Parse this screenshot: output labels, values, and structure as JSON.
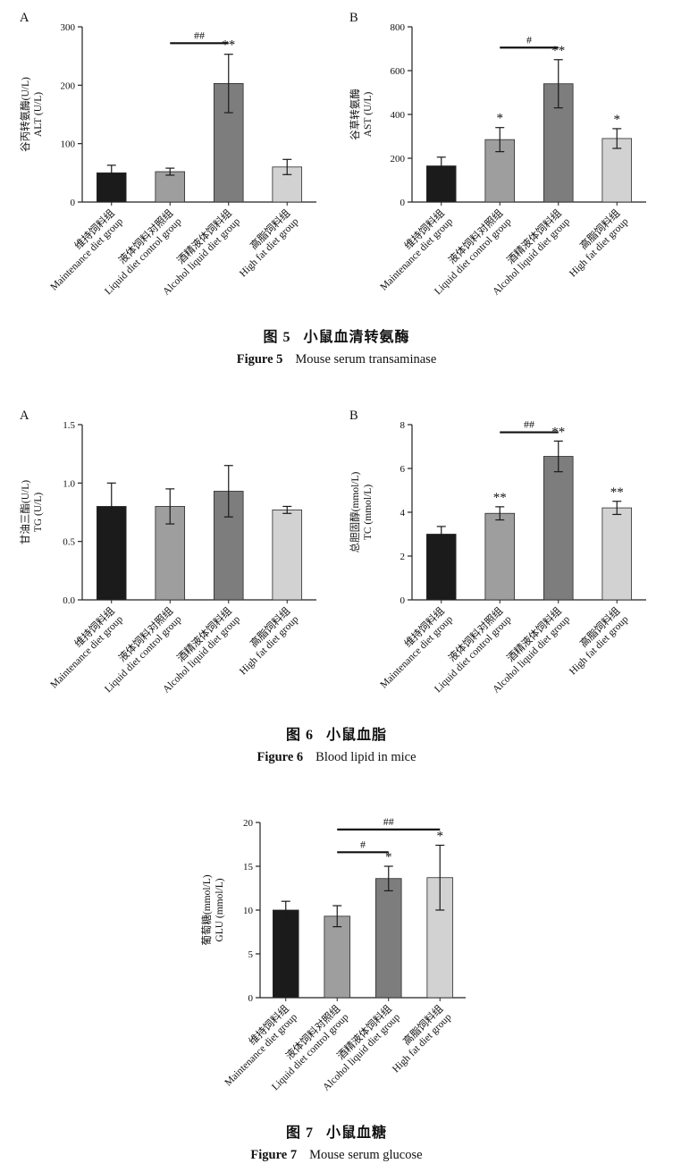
{
  "page": {
    "background": "#ffffff",
    "text_color": "#111111"
  },
  "figures": [
    {
      "caption_zh_bold": "图 5",
      "caption_zh_rest": "小鼠血清转氨酶",
      "caption_en_bold": "Figure 5",
      "caption_en_rest": "Mouse serum transaminase"
    },
    {
      "caption_zh_bold": "图 6",
      "caption_zh_rest": "小鼠血脂",
      "caption_en_bold": "Figure 6",
      "caption_en_rest": "Blood lipid in mice"
    },
    {
      "caption_zh_bold": "图 7",
      "caption_zh_rest": "小鼠血糖",
      "caption_en_bold": "Figure 7",
      "caption_en_rest": "Mouse serum glucose"
    }
  ],
  "chart_data": [
    {
      "id": "figure5-panel-A",
      "type": "bar",
      "panel_label": "A",
      "title": "",
      "xlabel": "",
      "ylabel_lines": [
        "谷丙转氨酶(U/L)",
        "ALT (U/L)"
      ],
      "ylim": [
        0,
        300
      ],
      "yticks": [
        0,
        100,
        200,
        300
      ],
      "ytick_labels": [
        "0",
        "100",
        "200",
        "300"
      ],
      "grid": false,
      "legend": "none",
      "categories_zh": [
        "维持饲料组",
        "液体饲料对照组",
        "酒精液体饲料组",
        "高脂饲料组"
      ],
      "categories_en": [
        "Maintenance diet group",
        "Liquid diet control group",
        "Alcohol liquid diet group",
        "High fat diet group"
      ],
      "values": [
        50,
        52,
        203,
        60
      ],
      "errors": [
        13,
        6,
        50,
        13
      ],
      "bar_colors": [
        "#1b1b1b",
        "#9e9e9e",
        "#7d7d7d",
        "#d2d2d2"
      ],
      "sig_markers": [
        "",
        "",
        "**",
        ""
      ],
      "sig_lines": [
        {
          "from": 1,
          "to": 2,
          "y": 272,
          "label": "##"
        }
      ]
    },
    {
      "id": "figure5-panel-B",
      "type": "bar",
      "panel_label": "B",
      "title": "",
      "xlabel": "",
      "ylabel_lines": [
        "谷草转氨酶",
        "AST (U/L)"
      ],
      "ylim": [
        0,
        800
      ],
      "yticks": [
        0,
        200,
        400,
        600,
        800
      ],
      "ytick_labels": [
        "0",
        "200",
        "400",
        "600",
        "800"
      ],
      "grid": false,
      "legend": "none",
      "categories_zh": [
        "维持饲料组",
        "液体饲料对照组",
        "酒精液体饲料组",
        "高脂饲料组"
      ],
      "categories_en": [
        "Maintenance diet group",
        "Liquid diet control group",
        "Alcohol liquid diet group",
        "High fat diet group"
      ],
      "values": [
        165,
        285,
        540,
        290
      ],
      "errors": [
        40,
        55,
        110,
        45
      ],
      "bar_colors": [
        "#1b1b1b",
        "#9e9e9e",
        "#7d7d7d",
        "#d2d2d2"
      ],
      "sig_markers": [
        "",
        "*",
        "**",
        "*"
      ],
      "sig_lines": [
        {
          "from": 1,
          "to": 2,
          "y": 705,
          "label": "#"
        }
      ]
    },
    {
      "id": "figure6-panel-A",
      "type": "bar",
      "panel_label": "A",
      "title": "",
      "xlabel": "",
      "ylabel_lines": [
        "甘油三酯(U/L)",
        "TG (U/L)"
      ],
      "ylim": [
        0,
        1.5
      ],
      "yticks": [
        0,
        0.5,
        1.0,
        1.5
      ],
      "ytick_labels": [
        "0.0",
        "0.5",
        "1.0",
        "1.5"
      ],
      "grid": false,
      "legend": "none",
      "categories_zh": [
        "维持饲料组",
        "液体饲料对照组",
        "酒精液体饲料组",
        "高脂饲料组"
      ],
      "categories_en": [
        "Maintenance diet group",
        "Liquid diet control group",
        "Alcohol liquid diet group",
        "High fat diet group"
      ],
      "values": [
        0.8,
        0.8,
        0.93,
        0.77
      ],
      "errors": [
        0.2,
        0.15,
        0.22,
        0.03
      ],
      "bar_colors": [
        "#1b1b1b",
        "#9e9e9e",
        "#7d7d7d",
        "#d2d2d2"
      ],
      "sig_markers": [
        "",
        "",
        "",
        ""
      ],
      "sig_lines": []
    },
    {
      "id": "figure6-panel-B",
      "type": "bar",
      "panel_label": "B",
      "title": "",
      "xlabel": "",
      "ylabel_lines": [
        "总胆固醇(mmol/L)",
        "TC (mmol/L)"
      ],
      "ylim": [
        0,
        8
      ],
      "yticks": [
        0,
        2,
        4,
        6,
        8
      ],
      "ytick_labels": [
        "0",
        "2",
        "4",
        "6",
        "8"
      ],
      "grid": false,
      "legend": "none",
      "categories_zh": [
        "维持饲料组",
        "液体饲料对照组",
        "酒精液体饲料组",
        "高脂饲料组"
      ],
      "categories_en": [
        "Maintenance diet group",
        "Liquid diet control group",
        "Alcohol liquid diet group",
        "High fat diet group"
      ],
      "values": [
        3.0,
        3.95,
        6.55,
        4.2
      ],
      "errors": [
        0.35,
        0.3,
        0.7,
        0.3
      ],
      "bar_colors": [
        "#1b1b1b",
        "#9e9e9e",
        "#7d7d7d",
        "#d2d2d2"
      ],
      "sig_markers": [
        "",
        "**",
        "**",
        "**"
      ],
      "sig_lines": [
        {
          "from": 1,
          "to": 2,
          "y": 7.65,
          "label": "##"
        }
      ]
    },
    {
      "id": "figure7",
      "type": "bar",
      "panel_label": "",
      "title": "",
      "xlabel": "",
      "ylabel_lines": [
        "葡萄糖(mmol/L)",
        "GLU (mmol/L)"
      ],
      "ylim": [
        0,
        20
      ],
      "yticks": [
        0,
        5,
        10,
        15,
        20
      ],
      "ytick_labels": [
        "0",
        "5",
        "10",
        "15",
        "20"
      ],
      "grid": false,
      "legend": "none",
      "categories_zh": [
        "维持饲料组",
        "液体饲料对照组",
        "酒精液体饲料组",
        "高脂饲料组"
      ],
      "categories_en": [
        "Maintenance diet group",
        "Liquid diet control group",
        "Alcohol liquid diet group",
        "High fat diet group"
      ],
      "values": [
        10.0,
        9.3,
        13.6,
        13.7
      ],
      "errors": [
        1.0,
        1.2,
        1.4,
        3.7
      ],
      "bar_colors": [
        "#1b1b1b",
        "#9e9e9e",
        "#7d7d7d",
        "#d2d2d2"
      ],
      "sig_markers": [
        "",
        "",
        "*",
        "*"
      ],
      "sig_lines": [
        {
          "from": 1,
          "to": 2,
          "y": 16.6,
          "label": "#"
        },
        {
          "from": 1,
          "to": 3,
          "y": 19.2,
          "label": "##"
        }
      ]
    }
  ]
}
